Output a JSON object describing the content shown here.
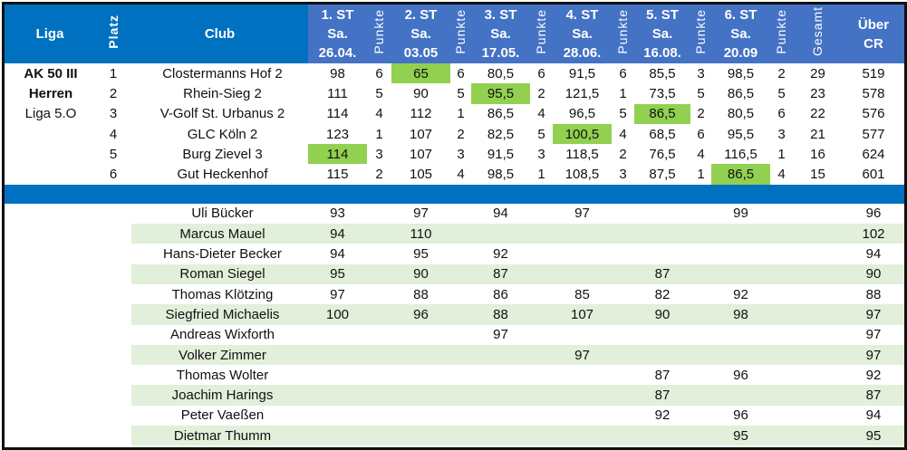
{
  "header": {
    "liga": "Liga",
    "platz": "Platz",
    "club": "Club",
    "stages": [
      {
        "title": "1. ST",
        "day": "Sa.",
        "date": "26.04."
      },
      {
        "title": "2. ST",
        "day": "Sa.",
        "date": "03.05"
      },
      {
        "title": "3. ST",
        "day": "Sa.",
        "date": "17.05."
      },
      {
        "title": "4. ST",
        "day": "Sa.",
        "date": "28.06."
      },
      {
        "title": "5. ST",
        "day": "Sa.",
        "date": "16.08."
      },
      {
        "title": "6. ST",
        "day": "Sa.",
        "date": "20.09"
      }
    ],
    "punkte": "Punkte",
    "gesamt": "Gesamt",
    "cr_line1": "Über",
    "cr_line2": "CR"
  },
  "liga_lines": [
    {
      "text": "AK 50 III",
      "bold": true
    },
    {
      "text": "Herren",
      "bold": true
    },
    {
      "text": "Liga 5.O",
      "bold": false
    }
  ],
  "highlight_color": "#92d050",
  "teams": [
    {
      "platz": "1",
      "club": "Clostermanns Hof 2",
      "scores": [
        "98",
        "65",
        "80,5",
        "91,5",
        "85,5",
        "98,5"
      ],
      "points": [
        "6",
        "6",
        "6",
        "6",
        "3",
        "2"
      ],
      "best_stage": 1,
      "gesamt": "29",
      "cr": "519"
    },
    {
      "platz": "2",
      "club": "Rhein-Sieg 2",
      "scores": [
        "111",
        "90",
        "95,5",
        "121,5",
        "73,5",
        "86,5"
      ],
      "points": [
        "5",
        "5",
        "2",
        "1",
        "5",
        "5"
      ],
      "best_stage": 2,
      "gesamt": "23",
      "cr": "578"
    },
    {
      "platz": "3",
      "club": "V-Golf St. Urbanus 2",
      "scores": [
        "114",
        "112",
        "86,5",
        "96,5",
        "86,5",
        "80,5"
      ],
      "points": [
        "4",
        "1",
        "4",
        "5",
        "2",
        "6"
      ],
      "best_stage": 4,
      "gesamt": "22",
      "cr": "576"
    },
    {
      "platz": "4",
      "club": "GLC Köln 2",
      "scores": [
        "123",
        "107",
        "82,5",
        "100,5",
        "68,5",
        "95,5"
      ],
      "points": [
        "1",
        "2",
        "5",
        "4",
        "6",
        "3"
      ],
      "best_stage": 3,
      "gesamt": "21",
      "cr": "577"
    },
    {
      "platz": "5",
      "club": "Burg Zievel 3",
      "scores": [
        "114",
        "107",
        "91,5",
        "118,5",
        "76,5",
        "116,5"
      ],
      "points": [
        "3",
        "3",
        "3",
        "2",
        "4",
        "1"
      ],
      "best_stage": 0,
      "gesamt": "16",
      "cr": "624"
    },
    {
      "platz": "6",
      "club": "Gut Heckenhof",
      "scores": [
        "115",
        "105",
        "98,5",
        "108,5",
        "87,5",
        "86,5"
      ],
      "points": [
        "2",
        "4",
        "1",
        "3",
        "1",
        "4"
      ],
      "best_stage": 5,
      "gesamt": "15",
      "cr": "601"
    }
  ],
  "players": [
    {
      "name": "Uli Bücker",
      "scores": [
        "93",
        "97",
        "94",
        "97",
        "",
        "99"
      ],
      "cr": "96"
    },
    {
      "name": "Marcus Mauel",
      "scores": [
        "94",
        "110",
        "",
        "",
        "",
        ""
      ],
      "cr": "102"
    },
    {
      "name": "Hans-Dieter Becker",
      "scores": [
        "94",
        "95",
        "92",
        "",
        "",
        ""
      ],
      "cr": "94"
    },
    {
      "name": "Roman Siegel",
      "scores": [
        "95",
        "90",
        "87",
        "",
        "87",
        ""
      ],
      "cr": "90"
    },
    {
      "name": "Thomas Klötzing",
      "scores": [
        "97",
        "88",
        "86",
        "85",
        "82",
        "92"
      ],
      "cr": "88"
    },
    {
      "name": "Siegfried Michaelis",
      "scores": [
        "100",
        "96",
        "88",
        "107",
        "90",
        "98"
      ],
      "cr": "97"
    },
    {
      "name": "Andreas Wixforth",
      "scores": [
        "",
        "",
        "97",
        "",
        "",
        ""
      ],
      "cr": "97"
    },
    {
      "name": "Volker Zimmer",
      "scores": [
        "",
        "",
        "",
        "97",
        "",
        ""
      ],
      "cr": "97"
    },
    {
      "name": "Thomas Wolter",
      "scores": [
        "",
        "",
        "",
        "",
        "87",
        "96"
      ],
      "cr": "92"
    },
    {
      "name": "Joachim Harings",
      "scores": [
        "",
        "",
        "",
        "",
        "87",
        ""
      ],
      "cr": "87"
    },
    {
      "name": "Peter Vaeßen",
      "scores": [
        "",
        "",
        "",
        "",
        "92",
        "96"
      ],
      "cr": "94"
    },
    {
      "name": "Dietmar Thumm",
      "scores": [
        "",
        "",
        "",
        "",
        "",
        "95"
      ],
      "cr": "95"
    }
  ]
}
